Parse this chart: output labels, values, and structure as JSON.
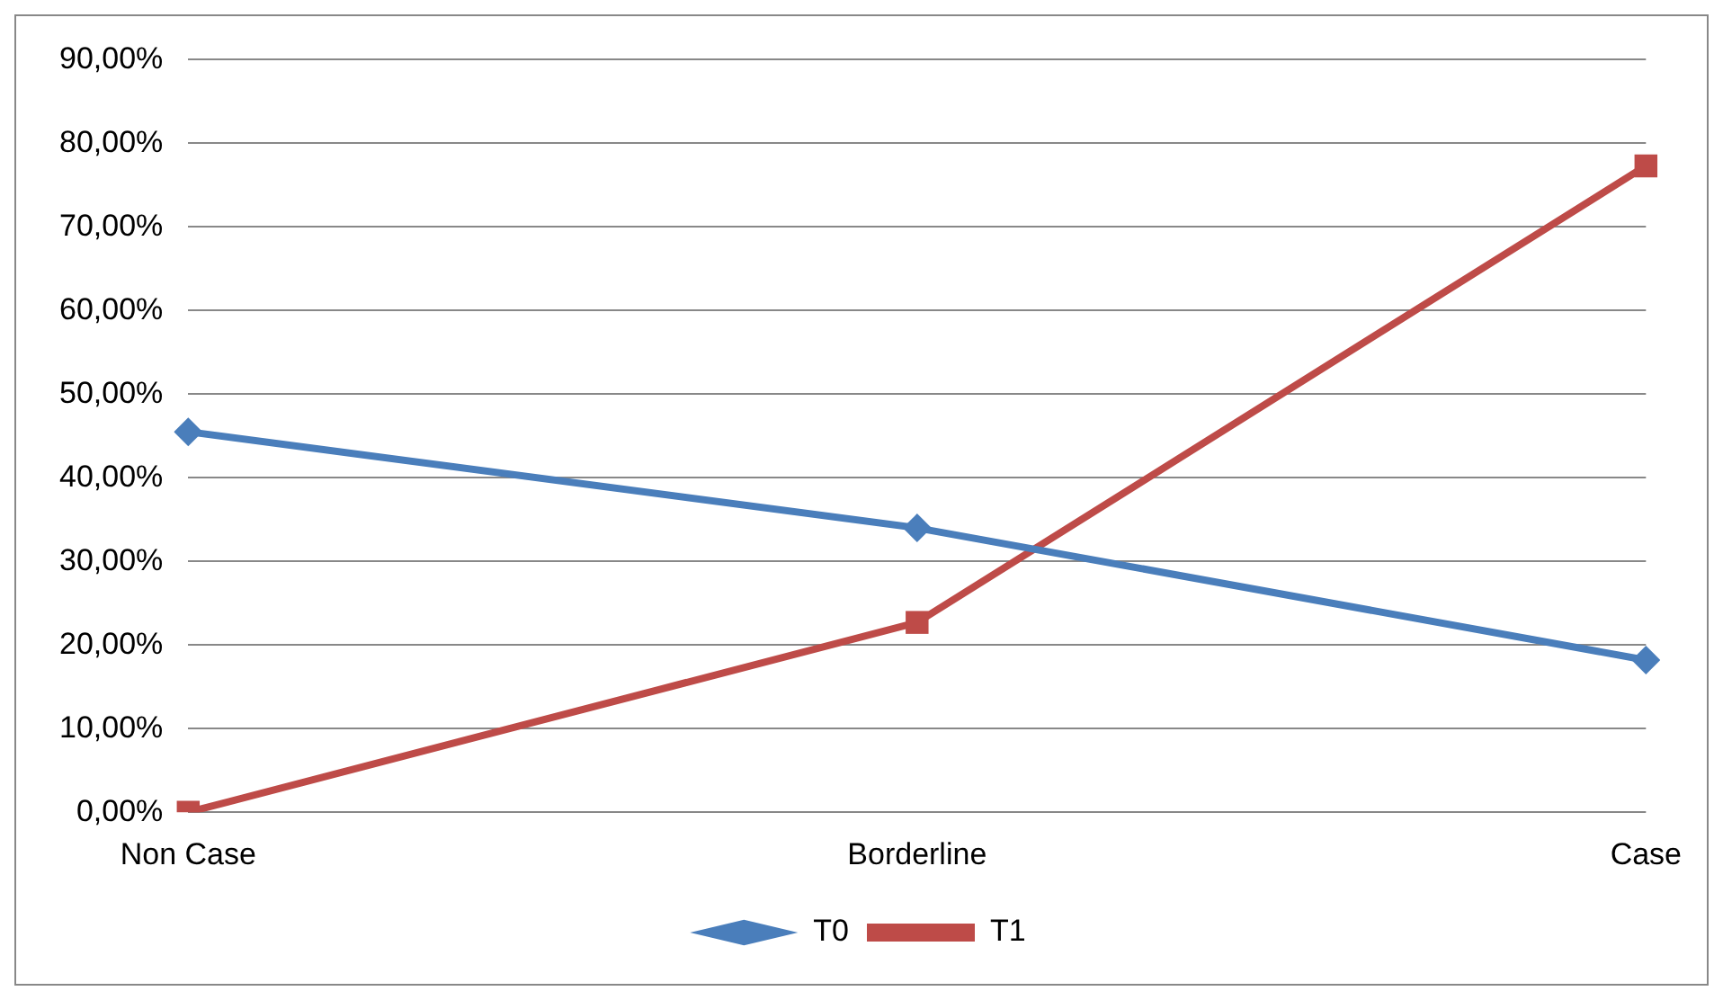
{
  "chart_data": {
    "type": "line",
    "categories": [
      "Non Case",
      "Borderline",
      "Case"
    ],
    "series": [
      {
        "name": "T0",
        "color": "#4a7ebb",
        "marker": "diamond",
        "values": [
          45.5,
          34,
          18.2
        ]
      },
      {
        "name": "T1",
        "color": "#be4b48",
        "marker": "square",
        "values": [
          0,
          22.7,
          77.3
        ]
      }
    ],
    "ylim": [
      0,
      90
    ],
    "yticks": [
      {
        "value": 0,
        "label": "0,00%"
      },
      {
        "value": 10,
        "label": "10,00%"
      },
      {
        "value": 20,
        "label": "20,00%"
      },
      {
        "value": 30,
        "label": "30,00%"
      },
      {
        "value": 40,
        "label": "40,00%"
      },
      {
        "value": 50,
        "label": "50,00%"
      },
      {
        "value": 60,
        "label": "60,00%"
      },
      {
        "value": 70,
        "label": "70,00%"
      },
      {
        "value": 80,
        "label": "80,00%"
      },
      {
        "value": 90,
        "label": "90,00%"
      }
    ],
    "grid": "y",
    "legend": "bottom",
    "line_style": "solid"
  }
}
